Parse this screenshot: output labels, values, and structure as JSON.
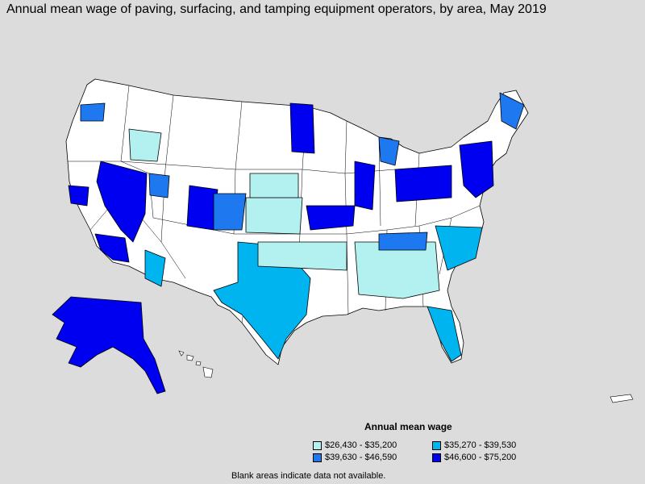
{
  "title": "Annual mean wage of paving, surfacing, and tamping equipment operators, by area, May 2019",
  "legend": {
    "title": "Annual mean wage",
    "items": [
      {
        "label": "$26,430 - $35,200",
        "color": "#b3f0f0"
      },
      {
        "label": "$35,270 - $39,530",
        "color": "#00b4f0"
      },
      {
        "label": "$39,630 - $46,590",
        "color": "#1e78f0"
      },
      {
        "label": "$46,600 - $75,200",
        "color": "#0000f0"
      }
    ]
  },
  "footnote": "Blank areas indicate data not available.",
  "colors": {
    "background": "#dcdcdc",
    "land": "#ffffff",
    "border": "#000000"
  }
}
